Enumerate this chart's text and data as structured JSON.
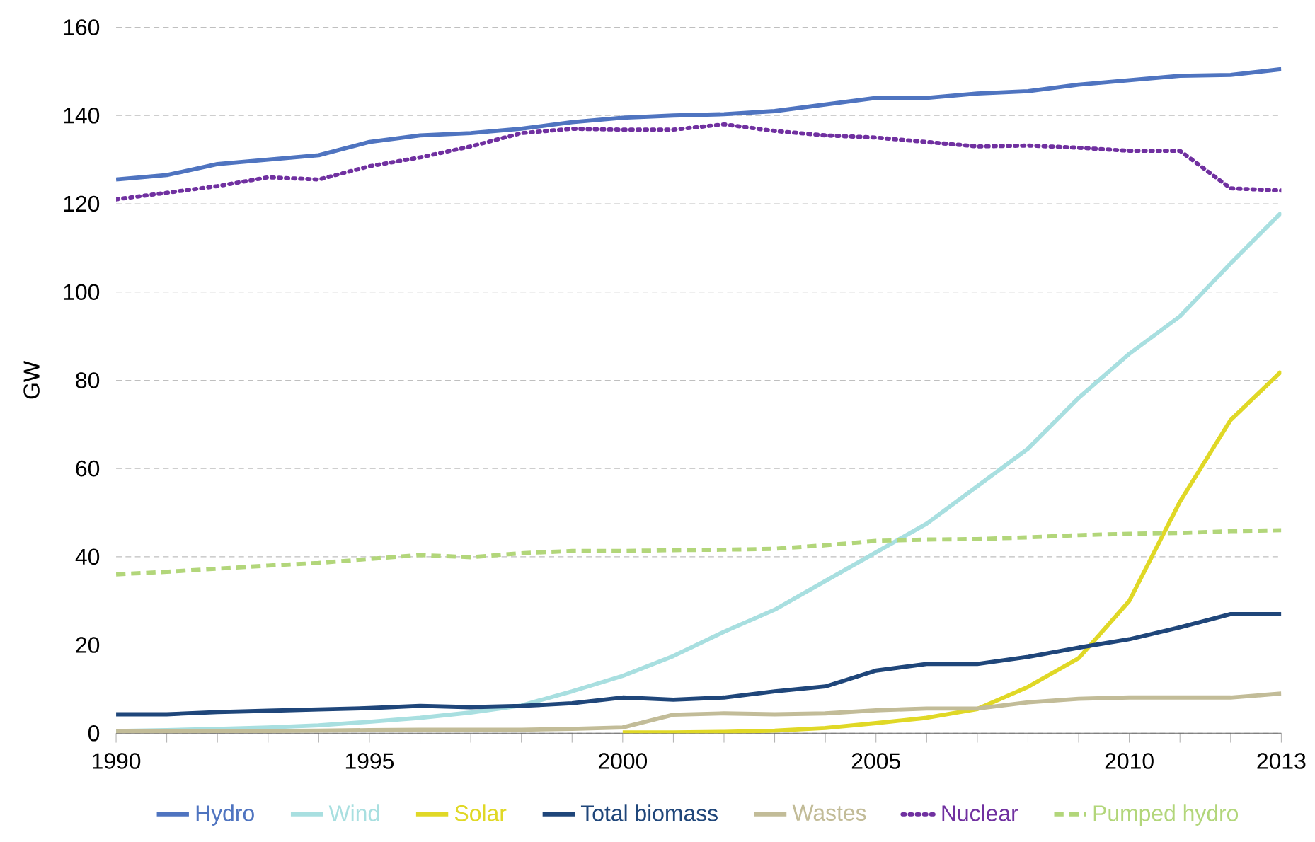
{
  "chart_data": {
    "type": "line",
    "ylabel": "GW",
    "x": [
      1990,
      1991,
      1992,
      1993,
      1994,
      1995,
      1996,
      1997,
      1998,
      1999,
      2000,
      2001,
      2002,
      2003,
      2004,
      2005,
      2006,
      2007,
      2008,
      2009,
      2010,
      2011,
      2012,
      2013
    ],
    "xlim": [
      1990,
      2013
    ],
    "xticks": [
      1990,
      {
        "value": 1991,
        "label": null
      },
      {
        "value": 1992,
        "label": null
      },
      {
        "value": 1993,
        "label": null
      },
      {
        "value": 1994,
        "label": null
      },
      1995,
      {
        "value": 1996,
        "label": null
      },
      {
        "value": 1997,
        "label": null
      },
      {
        "value": 1998,
        "label": null
      },
      {
        "value": 1999,
        "label": null
      },
      2000,
      {
        "value": 2001,
        "label": null
      },
      {
        "value": 2002,
        "label": null
      },
      {
        "value": 2003,
        "label": null
      },
      {
        "value": 2004,
        "label": null
      },
      2005,
      {
        "value": 2006,
        "label": null
      },
      {
        "value": 2007,
        "label": null
      },
      {
        "value": 2008,
        "label": null
      },
      {
        "value": 2009,
        "label": null
      },
      2010,
      {
        "value": 2011,
        "label": null
      },
      {
        "value": 2012,
        "label": null
      },
      2013
    ],
    "ylim": [
      0,
      160
    ],
    "yticks": [
      0,
      20,
      40,
      60,
      80,
      100,
      120,
      140,
      160
    ],
    "grid": "y",
    "legend": "bottom",
    "marker": "none",
    "series": [
      {
        "name": "Hydro",
        "color": "#4f74c0",
        "line_style": "solid",
        "values": [
          125.5,
          126.5,
          129,
          130,
          131,
          134,
          135.5,
          136,
          137,
          138.5,
          139.5,
          140,
          140.3,
          141,
          142.5,
          144,
          144,
          145,
          145.5,
          147,
          148,
          149,
          149.2,
          150.5
        ]
      },
      {
        "name": "Wind",
        "color": "#a8dfe0",
        "line_style": "solid",
        "values": [
          0.5,
          0.7,
          1,
          1.3,
          1.8,
          2.6,
          3.5,
          4.7,
          6.3,
          9.5,
          13,
          17.5,
          23,
          28,
          34.5,
          41,
          47.5,
          56,
          64.5,
          76,
          86,
          94.5,
          106.5,
          118
        ]
      },
      {
        "name": "Solar",
        "color": "#e0d826",
        "line_style": "solid",
        "values": [
          null,
          null,
          null,
          null,
          null,
          null,
          null,
          null,
          null,
          null,
          0.2,
          0.2,
          0.3,
          0.6,
          1.2,
          2.3,
          3.5,
          5.5,
          10.5,
          17,
          30,
          52.5,
          71,
          82
        ]
      },
      {
        "name": "Total biomass",
        "color": "#1f467a",
        "line_style": "solid",
        "values": [
          4.3,
          4.3,
          4.8,
          5.1,
          5.4,
          5.7,
          6.2,
          5.9,
          6.2,
          6.8,
          8.1,
          7.6,
          8.1,
          9.5,
          10.6,
          14.2,
          15.7,
          15.7,
          17.3,
          19.4,
          21.3,
          24,
          27,
          27
        ]
      },
      {
        "name": "Wastes",
        "color": "#c2bc98",
        "line_style": "solid",
        "values": [
          0.4,
          0.4,
          0.5,
          0.5,
          0.6,
          0.7,
          0.8,
          0.8,
          0.8,
          1,
          1.3,
          4.2,
          4.5,
          4.3,
          4.5,
          5.2,
          5.6,
          5.6,
          7,
          7.8,
          8.1,
          8.1,
          8.1,
          9
        ]
      },
      {
        "name": "Nuclear",
        "color": "#7030a0",
        "line_style": "dotted",
        "values": [
          121,
          122.5,
          124,
          126,
          125.5,
          128.5,
          130.5,
          133,
          136,
          137,
          136.8,
          136.8,
          138,
          136.5,
          135.5,
          135,
          134,
          133,
          133.2,
          132.7,
          132,
          132,
          123.5,
          123
        ]
      },
      {
        "name": "Pumped hydro",
        "color": "#b2d67a",
        "line_style": "dashed",
        "values": [
          36,
          36.6,
          37.3,
          38,
          38.6,
          39.5,
          40.4,
          39.9,
          40.8,
          41.3,
          41.3,
          41.5,
          41.6,
          41.8,
          42.6,
          43.6,
          43.9,
          44,
          44.4,
          44.9,
          45.2,
          45.4,
          45.8,
          46
        ]
      }
    ]
  }
}
